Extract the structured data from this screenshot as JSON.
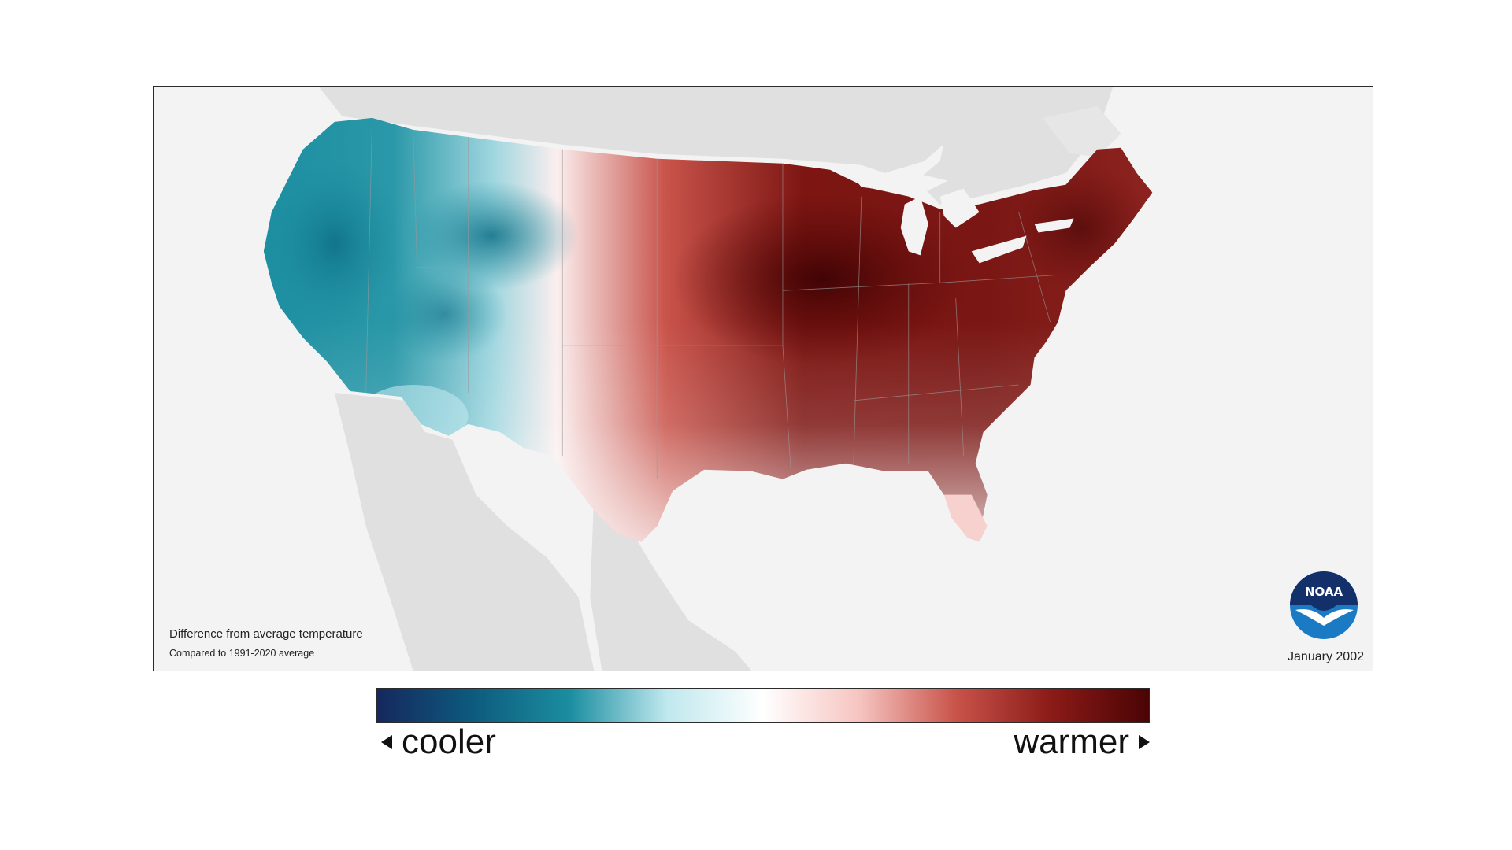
{
  "map": {
    "title": "Difference from average temperature",
    "subtitle": "Compared to 1991-2020 average",
    "date": "January 2002",
    "logo_text": "NOAA"
  },
  "legend": {
    "cooler_label": "cooler",
    "warmer_label": "warmer",
    "colors": [
      "#15285e",
      "#0d5b7e",
      "#1b8ea0",
      "#bfe8ee",
      "#ffffff",
      "#f6c4c0",
      "#c8534a",
      "#8a1a17",
      "#4a0404"
    ]
  },
  "colors": {
    "land_background": "#e0e0e0",
    "ocean": "#f3f3f3",
    "warm_max": "#4a0404",
    "cool_max": "#0d5b7e"
  }
}
